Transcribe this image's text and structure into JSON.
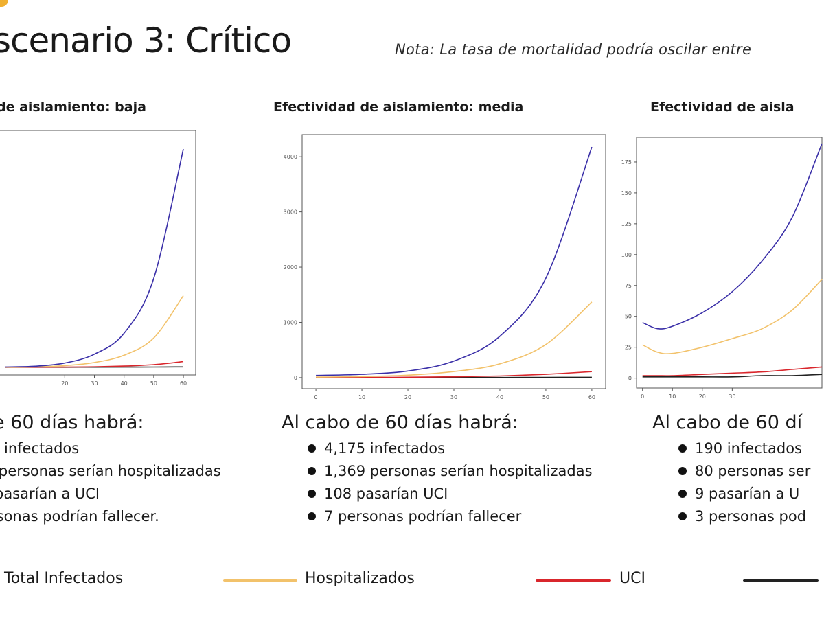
{
  "title": "scenario 3: Crítico",
  "note": "Nota: La tasa de mortalidad podría oscilar entre",
  "panels": [
    {
      "title": "de aislamiento: baja",
      "summary_head": "e 60 días habrá:",
      "items": [
        "infectados",
        "personas serían hospitalizadas",
        "pasarían a UCI",
        "rsonas podrían fallecer."
      ]
    },
    {
      "title": "Efectividad de aislamiento: media",
      "summary_head": "Al cabo de 60 días habrá:",
      "items": [
        "4,175 infectados",
        "1,369 personas serían hospitalizadas",
        "108 pasarían UCI",
        "7 personas podrían fallecer"
      ]
    },
    {
      "title": "Efectividad de aisla",
      "summary_head": "Al cabo de 60 dí",
      "items": [
        "190 infectados",
        "80 personas ser",
        "9 pasarían a U",
        "3 personas pod"
      ]
    }
  ],
  "legend": [
    {
      "label": "Total Infectados",
      "color": "#3a2fa8"
    },
    {
      "label": "Hospitalizados",
      "color": "#f2c26b"
    },
    {
      "label": "UCI",
      "color": "#d9262c"
    },
    {
      "label": "",
      "color": "#222222"
    }
  ],
  "chart_data": [
    {
      "type": "line",
      "x": [
        0,
        10,
        20,
        30,
        40,
        50,
        60
      ],
      "x_ticks": [
        20,
        30,
        40,
        50,
        60
      ],
      "y_ticks": [],
      "xlim": [
        -3,
        63
      ],
      "ylim": [
        -200,
        4400
      ],
      "series": [
        {
          "name": "Total Infectados",
          "color": "#3a2fa8",
          "values": [
            5,
            20,
            80,
            250,
            650,
            1700,
            4175
          ]
        },
        {
          "name": "Hospitalizados",
          "color": "#f2c26b",
          "values": [
            2,
            8,
            30,
            90,
            230,
            560,
            1369
          ]
        },
        {
          "name": "UCI",
          "color": "#d9262c",
          "values": [
            0,
            1,
            3,
            8,
            22,
            50,
            108
          ]
        },
        {
          "name": "",
          "color": "#222222",
          "values": [
            0,
            0,
            0,
            1,
            2,
            4,
            7
          ]
        }
      ]
    },
    {
      "type": "line",
      "x": [
        0,
        10,
        20,
        30,
        40,
        50,
        60
      ],
      "x_ticks": [
        0,
        10,
        20,
        30,
        40,
        50,
        60
      ],
      "y_ticks": [
        0,
        1000,
        2000,
        3000,
        4000
      ],
      "xlim": [
        -3,
        63
      ],
      "ylim": [
        -200,
        4400
      ],
      "series": [
        {
          "name": "Total Infectados",
          "color": "#3a2fa8",
          "values": [
            40,
            60,
            120,
            300,
            750,
            1800,
            4175
          ]
        },
        {
          "name": "Hospitalizados",
          "color": "#f2c26b",
          "values": [
            10,
            20,
            45,
            110,
            250,
            600,
            1369
          ]
        },
        {
          "name": "UCI",
          "color": "#d9262c",
          "values": [
            0,
            3,
            8,
            15,
            30,
            60,
            108
          ]
        },
        {
          "name": "",
          "color": "#222222",
          "values": [
            0,
            0,
            1,
            2,
            3,
            5,
            7
          ]
        }
      ]
    },
    {
      "type": "line",
      "x": [
        0,
        5,
        10,
        20,
        30,
        40,
        50,
        60
      ],
      "x_ticks": [
        0,
        10,
        20,
        30
      ],
      "y_ticks": [
        0,
        25,
        50,
        75,
        100,
        125,
        150,
        175
      ],
      "xlim": [
        -2,
        60
      ],
      "ylim": [
        -8,
        195
      ],
      "series": [
        {
          "name": "Total Infectados",
          "color": "#3a2fa8",
          "values": [
            45,
            40,
            42,
            53,
            70,
            95,
            130,
            190
          ]
        },
        {
          "name": "Hospitalizados",
          "color": "#f2c26b",
          "values": [
            27,
            21,
            20,
            25,
            32,
            40,
            55,
            80
          ]
        },
        {
          "name": "UCI",
          "color": "#d9262c",
          "values": [
            2,
            2,
            2,
            3,
            4,
            5,
            7,
            9
          ]
        },
        {
          "name": "",
          "color": "#222222",
          "values": [
            1,
            1,
            1,
            1,
            1,
            2,
            2,
            3
          ]
        }
      ]
    }
  ]
}
